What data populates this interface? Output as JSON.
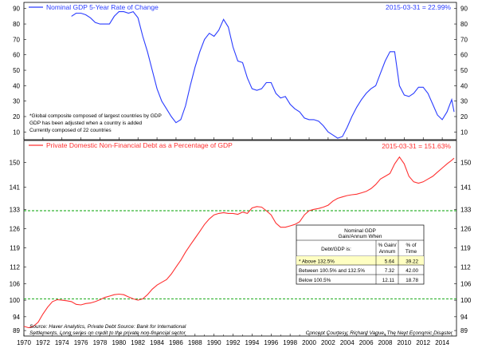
{
  "chart_data": [
    {
      "type": "line",
      "title": "Nominal GDP 5-Year Rate of Change",
      "latest_label": "2015-03-31 = 22.99%",
      "color": "#2a3cff",
      "ylim": [
        5,
        94
      ],
      "yticks": [
        10,
        20,
        30,
        40,
        50,
        60,
        70,
        80,
        90
      ],
      "notes": [
        "*Global composite composed of largest countries by GDP",
        "GDP has been adjusted when a country is added",
        "Currently composed of 22 countries"
      ],
      "series": [
        {
          "name": "Nominal GDP 5-Year Rate of Change",
          "x": [
            1975.0,
            1975.5,
            1976.0,
            1976.5,
            1977.0,
            1977.5,
            1978.0,
            1978.5,
            1979.0,
            1979.5,
            1980.0,
            1980.5,
            1981.0,
            1981.5,
            1982.0,
            1982.5,
            1983.0,
            1983.5,
            1984.0,
            1984.5,
            1985.0,
            1985.5,
            1986.0,
            1986.5,
            1987.0,
            1987.5,
            1988.0,
            1988.5,
            1989.0,
            1989.5,
            1990.0,
            1990.5,
            1991.0,
            1991.5,
            1992.0,
            1992.5,
            1993.0,
            1993.5,
            1994.0,
            1994.5,
            1995.0,
            1995.5,
            1996.0,
            1996.5,
            1997.0,
            1997.5,
            1998.0,
            1998.5,
            1999.0,
            1999.5,
            2000.0,
            2000.5,
            2001.0,
            2001.5,
            2002.0,
            2002.5,
            2003.0,
            2003.5,
            2004.0,
            2004.5,
            2005.0,
            2005.5,
            2006.0,
            2006.5,
            2007.0,
            2007.5,
            2008.0,
            2008.5,
            2009.0,
            2009.5,
            2010.0,
            2010.5,
            2011.0,
            2011.5,
            2012.0,
            2012.5,
            2013.0,
            2013.5,
            2014.0,
            2014.5,
            2015.0,
            2015.25
          ],
          "values": [
            85,
            87,
            87,
            86,
            84,
            81,
            80,
            80,
            80,
            85,
            88,
            88,
            87,
            88,
            84,
            72,
            62,
            50,
            38,
            30,
            25,
            20,
            16,
            18,
            27,
            40,
            52,
            62,
            70,
            74,
            72,
            76,
            83,
            78,
            65,
            56,
            55,
            45,
            38,
            37,
            38,
            42,
            42,
            35,
            32,
            33,
            28,
            25,
            23,
            19,
            18,
            18,
            17,
            14,
            10,
            8,
            6,
            7,
            13,
            20,
            26,
            31,
            35,
            38,
            40,
            48,
            56,
            62,
            62,
            40,
            34,
            33,
            35,
            39,
            39,
            35,
            28,
            21,
            18,
            23,
            31,
            23
          ]
        }
      ]
    },
    {
      "type": "line",
      "title": "Private Domestic Non-Financial Debt as a Percentage of GDP",
      "latest_label": "2015-03-31 = 151.63%",
      "color": "#ff3030",
      "ylim": [
        87,
        158
      ],
      "yticks": [
        89,
        94,
        100,
        106,
        112,
        119,
        126,
        133,
        141,
        150
      ],
      "xticks": [
        "1970",
        "1972",
        "1974",
        "1976",
        "1978",
        "1980",
        "1982",
        "1984",
        "1986",
        "1988",
        "1990",
        "1992",
        "1994",
        "1996",
        "1998",
        "2000",
        "2002",
        "2004",
        "2006",
        "2008",
        "2010",
        "2012",
        "2014"
      ],
      "xlim": [
        1970,
        2015.5
      ],
      "reference_lines": [
        100.5,
        132.5
      ],
      "sources": [
        "Source:  Haver Analytics, Private Debt Source: Bank for International",
        "Settlements, Long series on credit to the private non-financial sector"
      ],
      "credit": "Concept Courtesy: Richard Vague, The Next Economic Disaster",
      "series": [
        {
          "name": "Private Domestic Non-Financial Debt as a Percentage of GDP",
          "x": [
            1970.0,
            1970.5,
            1971.0,
            1971.5,
            1972.0,
            1972.5,
            1973.0,
            1973.5,
            1974.0,
            1974.5,
            1975.0,
            1975.5,
            1976.0,
            1976.5,
            1977.0,
            1977.5,
            1978.0,
            1978.5,
            1979.0,
            1979.5,
            1980.0,
            1980.5,
            1981.0,
            1981.5,
            1982.0,
            1982.5,
            1983.0,
            1983.5,
            1984.0,
            1984.5,
            1985.0,
            1985.5,
            1986.0,
            1986.5,
            1987.0,
            1987.5,
            1988.0,
            1988.5,
            1989.0,
            1989.5,
            1990.0,
            1990.5,
            1991.0,
            1991.5,
            1992.0,
            1992.5,
            1993.0,
            1993.5,
            1994.0,
            1994.5,
            1995.0,
            1995.5,
            1996.0,
            1996.5,
            1997.0,
            1997.5,
            1998.0,
            1998.5,
            1999.0,
            1999.5,
            2000.0,
            2000.5,
            2001.0,
            2001.5,
            2002.0,
            2002.5,
            2003.0,
            2003.5,
            2004.0,
            2004.5,
            2005.0,
            2005.5,
            2006.0,
            2006.5,
            2007.0,
            2007.5,
            2008.0,
            2008.5,
            2009.0,
            2009.5,
            2010.0,
            2010.5,
            2011.0,
            2011.5,
            2012.0,
            2012.5,
            2013.0,
            2013.5,
            2014.0,
            2014.5,
            2015.0,
            2015.25
          ],
          "values": [
            90.5,
            90.0,
            90.5,
            92.0,
            95.0,
            97.5,
            99.5,
            100.2,
            100.0,
            99.8,
            99.5,
            98.5,
            98.3,
            98.8,
            99.0,
            99.5,
            100.2,
            101.0,
            101.5,
            102.0,
            102.2,
            102.0,
            101.2,
            100.5,
            100.0,
            100.5,
            102.0,
            104.0,
            105.5,
            106.5,
            107.5,
            109.5,
            112.0,
            114.5,
            117.5,
            120.0,
            122.5,
            125.0,
            127.5,
            129.5,
            131.0,
            131.5,
            131.8,
            131.5,
            131.5,
            131.2,
            132.0,
            131.5,
            133.5,
            134.0,
            133.8,
            132.5,
            131.0,
            128.0,
            126.5,
            126.5,
            127.0,
            127.5,
            128.5,
            131.0,
            132.5,
            133.0,
            133.3,
            133.8,
            134.5,
            136.0,
            137.0,
            137.5,
            138.0,
            138.3,
            138.5,
            139.0,
            139.5,
            140.5,
            142.0,
            144.0,
            145.0,
            146.0,
            149.5,
            152.0,
            149.5,
            145.0,
            143.0,
            142.5,
            143.0,
            144.0,
            145.0,
            146.5,
            148.0,
            149.5,
            150.8,
            151.6
          ]
        }
      ],
      "table": {
        "title_line1": "Nominal GDP",
        "title_line2": "Gain/Annum When",
        "col0": "Debt/GDP is:",
        "col1_line1": "% Gain/",
        "col1_line2": "Annum",
        "col2_line1": "% of",
        "col2_line2": "Time",
        "rows": [
          [
            "* Above 132.5%",
            "5.64",
            "39.22"
          ],
          [
            "Between 100.5% and 132.5%",
            "7.32",
            "42.00"
          ],
          [
            "Below 100.5%",
            "12.11",
            "18.78"
          ]
        ]
      }
    }
  ]
}
